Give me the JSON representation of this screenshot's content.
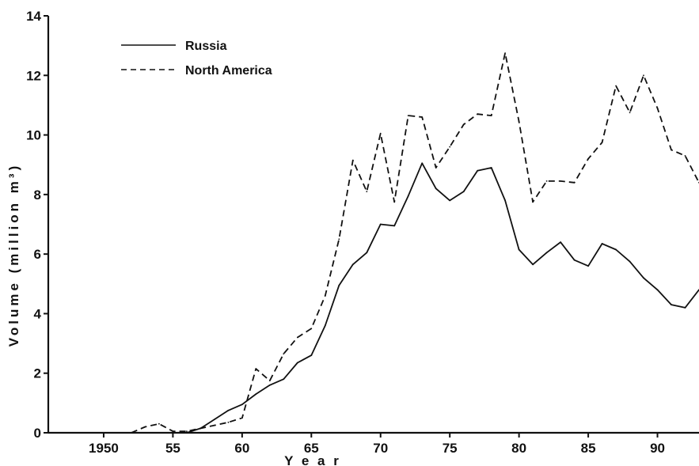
{
  "chart_data": {
    "type": "line",
    "xlabel": "Y e a r",
    "ylabel": "Volume (million m³)",
    "xlim": [
      1946,
      1993
    ],
    "ylim": [
      0,
      14
    ],
    "x_ticks": [
      1950,
      1955,
      1960,
      1965,
      1970,
      1975,
      1980,
      1985,
      1990
    ],
    "x_tick_labels": [
      "1950",
      "55",
      "60",
      "65",
      "70",
      "75",
      "80",
      "85",
      "90"
    ],
    "y_ticks": [
      0,
      2,
      4,
      6,
      8,
      10,
      12,
      14
    ],
    "y_tick_labels": [
      "0",
      "2",
      "4",
      "6",
      "8",
      "10",
      "12",
      "14"
    ],
    "grid": false,
    "legend_position": "top-left",
    "series": [
      {
        "name": "Russia",
        "style": "solid",
        "color": "#111111",
        "x": [
          1956,
          1957,
          1958,
          1959,
          1960,
          1961,
          1962,
          1963,
          1964,
          1965,
          1966,
          1967,
          1968,
          1969,
          1970,
          1971,
          1972,
          1973,
          1974,
          1975,
          1976,
          1977,
          1978,
          1979,
          1980,
          1981,
          1982,
          1983,
          1984,
          1985,
          1986,
          1987,
          1988,
          1989,
          1990,
          1991,
          1992,
          1993
        ],
        "y": [
          0,
          0.15,
          0.45,
          0.75,
          0.95,
          1.3,
          1.6,
          1.8,
          2.35,
          2.6,
          3.6,
          4.95,
          5.65,
          6.05,
          7.0,
          6.95,
          7.95,
          9.05,
          8.2,
          7.8,
          8.1,
          8.8,
          8.9,
          7.8,
          6.15,
          5.65,
          6.05,
          6.4,
          5.8,
          5.6,
          6.35,
          6.15,
          5.75,
          5.2,
          4.8,
          4.3,
          4.2,
          4.8
        ]
      },
      {
        "name": "North America",
        "style": "dashed",
        "color": "#111111",
        "x": [
          1952,
          1953,
          1954,
          1955,
          1956,
          1957,
          1958,
          1959,
          1960,
          1961,
          1962,
          1963,
          1964,
          1965,
          1966,
          1967,
          1968,
          1969,
          1970,
          1971,
          1972,
          1973,
          1974,
          1975,
          1976,
          1977,
          1978,
          1979,
          1980,
          1981,
          1982,
          1983,
          1984,
          1985,
          1986,
          1987,
          1988,
          1989,
          1990,
          1991,
          1992,
          1993
        ],
        "y": [
          0,
          0.2,
          0.3,
          0.05,
          0.05,
          0.15,
          0.25,
          0.35,
          0.5,
          2.15,
          1.75,
          2.65,
          3.2,
          3.5,
          4.6,
          6.5,
          9.15,
          8.1,
          10.05,
          7.75,
          10.65,
          10.6,
          8.9,
          9.6,
          10.35,
          10.7,
          10.65,
          12.75,
          10.45,
          7.75,
          8.45,
          8.45,
          8.4,
          9.2,
          9.75,
          11.65,
          10.75,
          12.0,
          10.9,
          9.5,
          9.3,
          8.4
        ]
      }
    ]
  }
}
